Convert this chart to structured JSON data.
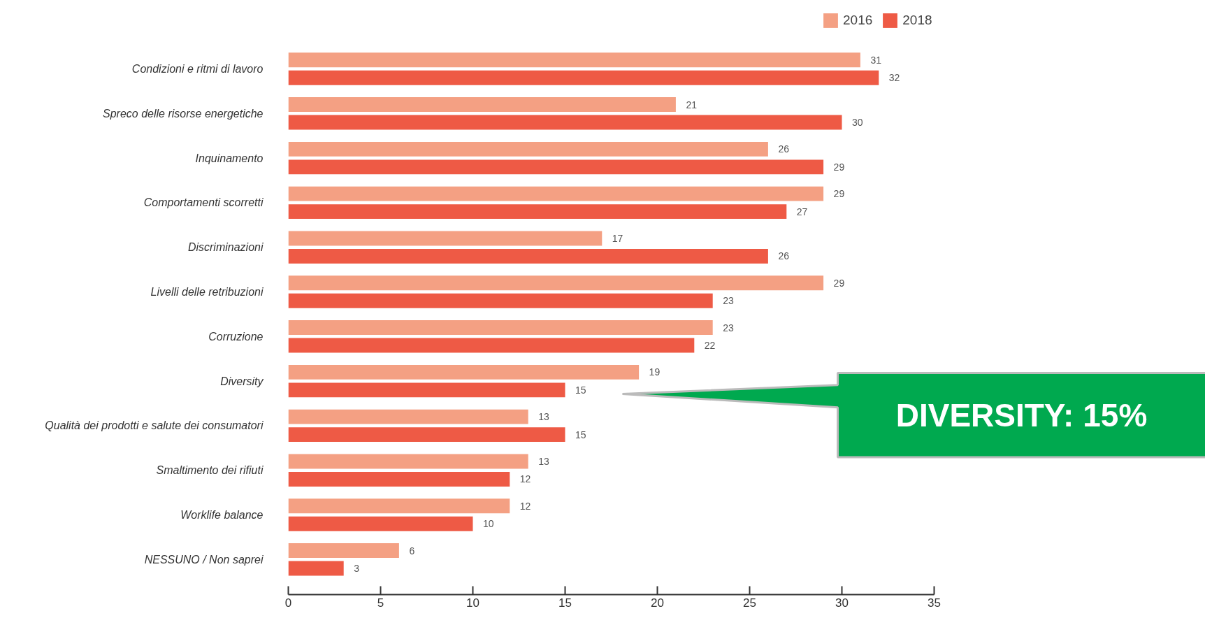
{
  "chart_data": {
    "type": "bar",
    "orientation": "horizontal",
    "categories": [
      "Condizioni e ritmi di lavoro",
      "Spreco delle risorse energetiche",
      "Inquinamento",
      "Comportamenti scorretti",
      "Discriminazioni",
      "Livelli delle retribuzioni",
      "Corruzione",
      "Diversity",
      "Qualità dei prodotti e salute dei consumatori",
      "Smaltimento dei rifiuti",
      "Worklife balance",
      "NESSUNO / Non saprei"
    ],
    "series": [
      {
        "name": "2016",
        "color": "#f4a083",
        "values": [
          31,
          21,
          26,
          29,
          17,
          29,
          23,
          19,
          13,
          13,
          12,
          6
        ]
      },
      {
        "name": "2018",
        "color": "#ee5a45",
        "values": [
          32,
          30,
          29,
          27,
          26,
          23,
          22,
          15,
          15,
          12,
          10,
          3
        ]
      }
    ],
    "xlim": [
      0,
      35
    ],
    "xticks": [
      0,
      5,
      10,
      15,
      20,
      25,
      30,
      35
    ],
    "data_labels": true,
    "grid": false,
    "legend": "top right",
    "annotations": [
      "DIVERSITY: 15%"
    ]
  }
}
